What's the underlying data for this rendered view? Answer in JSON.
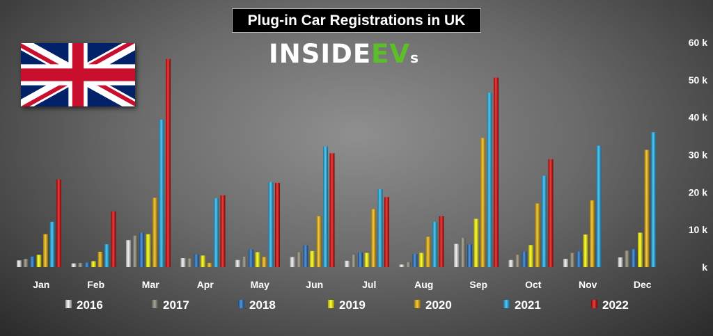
{
  "title": "Plug-in Car Registrations in UK",
  "logo": {
    "main": "INSIDE",
    "accent": "EV",
    "small": "s"
  },
  "chart_data": {
    "type": "bar",
    "title": "Plug-in Car Registrations in UK",
    "categories": [
      "Jan",
      "Feb",
      "Mar",
      "Apr",
      "May",
      "Jun",
      "Jul",
      "Aug",
      "Sep",
      "Oct",
      "Nov",
      "Dec"
    ],
    "y_ticks": [
      "k",
      "10 k",
      "20 k",
      "30 k",
      "40 k",
      "50 k",
      "60 k"
    ],
    "ylim": [
      0,
      60000
    ],
    "y_axis_position": "right",
    "grid": false,
    "legend_position": "bottom",
    "series": [
      {
        "name": "2016",
        "color": "#f2f2f2",
        "values": [
          1800,
          1000,
          7200,
          2400,
          1900,
          2700,
          1700,
          700,
          6200,
          1900,
          2200,
          2600
        ]
      },
      {
        "name": "2017",
        "color": "#8c8a78",
        "values": [
          2200,
          1100,
          8400,
          2300,
          2800,
          4000,
          3300,
          1300,
          7800,
          3300,
          3800,
          4400
        ]
      },
      {
        "name": "2018",
        "color": "#1e72c8",
        "values": [
          2800,
          1200,
          9200,
          3400,
          4700,
          5800,
          3900,
          3500,
          6100,
          4100,
          4200,
          4800
        ]
      },
      {
        "name": "2019",
        "color": "#ffff00",
        "values": [
          3300,
          1600,
          8800,
          3100,
          4000,
          4300,
          3800,
          3800,
          12900,
          5900,
          8700,
          9200
        ]
      },
      {
        "name": "2020",
        "color": "#f2b705",
        "values": [
          8800,
          4100,
          18500,
          1100,
          2700,
          13600,
          15500,
          8100,
          34500,
          17000,
          17800,
          31300
        ]
      },
      {
        "name": "2021",
        "color": "#1db4f0",
        "values": [
          12100,
          6100,
          39400,
          18400,
          22700,
          32200,
          20800,
          12100,
          46600,
          24400,
          32400,
          36000
        ]
      },
      {
        "name": "2022",
        "color": "#e00000",
        "values": [
          23400,
          14900,
          55600,
          19200,
          22500,
          30400,
          18700,
          13600,
          50600,
          28800,
          null,
          null
        ]
      }
    ]
  },
  "colors": {
    "flag_blue": "#012169",
    "flag_red": "#c8102e",
    "logo_green": "#5cbf2a"
  }
}
